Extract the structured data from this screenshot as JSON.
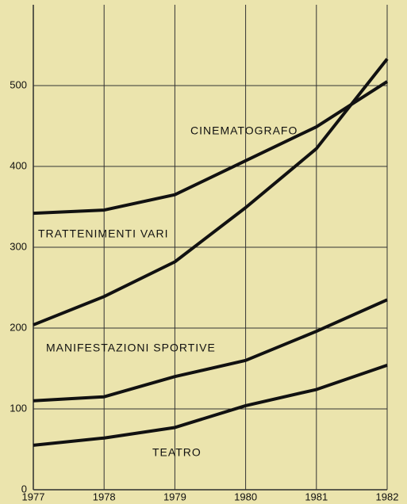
{
  "chart_data": {
    "type": "line",
    "x": [
      1977,
      1978,
      1979,
      1980,
      1981,
      1982
    ],
    "xlim": [
      1977,
      1982
    ],
    "xticks": [
      1977,
      1978,
      1979,
      1980,
      1981,
      1982
    ],
    "ylim": [
      0,
      600
    ],
    "yticks": [
      0,
      100,
      200,
      300,
      400,
      500
    ],
    "grid": true,
    "series": [
      {
        "name": "CINEMATOGRAFO",
        "color": "#111111",
        "values": [
          342,
          346,
          365,
          407,
          449,
          505
        ]
      },
      {
        "name": "TRATTENIMENTI VARI",
        "color": "#111111",
        "values": [
          204,
          239,
          282,
          349,
          422,
          533
        ]
      },
      {
        "name": "MANIFESTAZIONI SPORTIVE",
        "color": "#111111",
        "values": [
          110,
          115,
          140,
          160,
          196,
          235
        ]
      },
      {
        "name": "TEATRO",
        "color": "#111111",
        "values": [
          55,
          64,
          77,
          104,
          124,
          154
        ]
      }
    ]
  }
}
